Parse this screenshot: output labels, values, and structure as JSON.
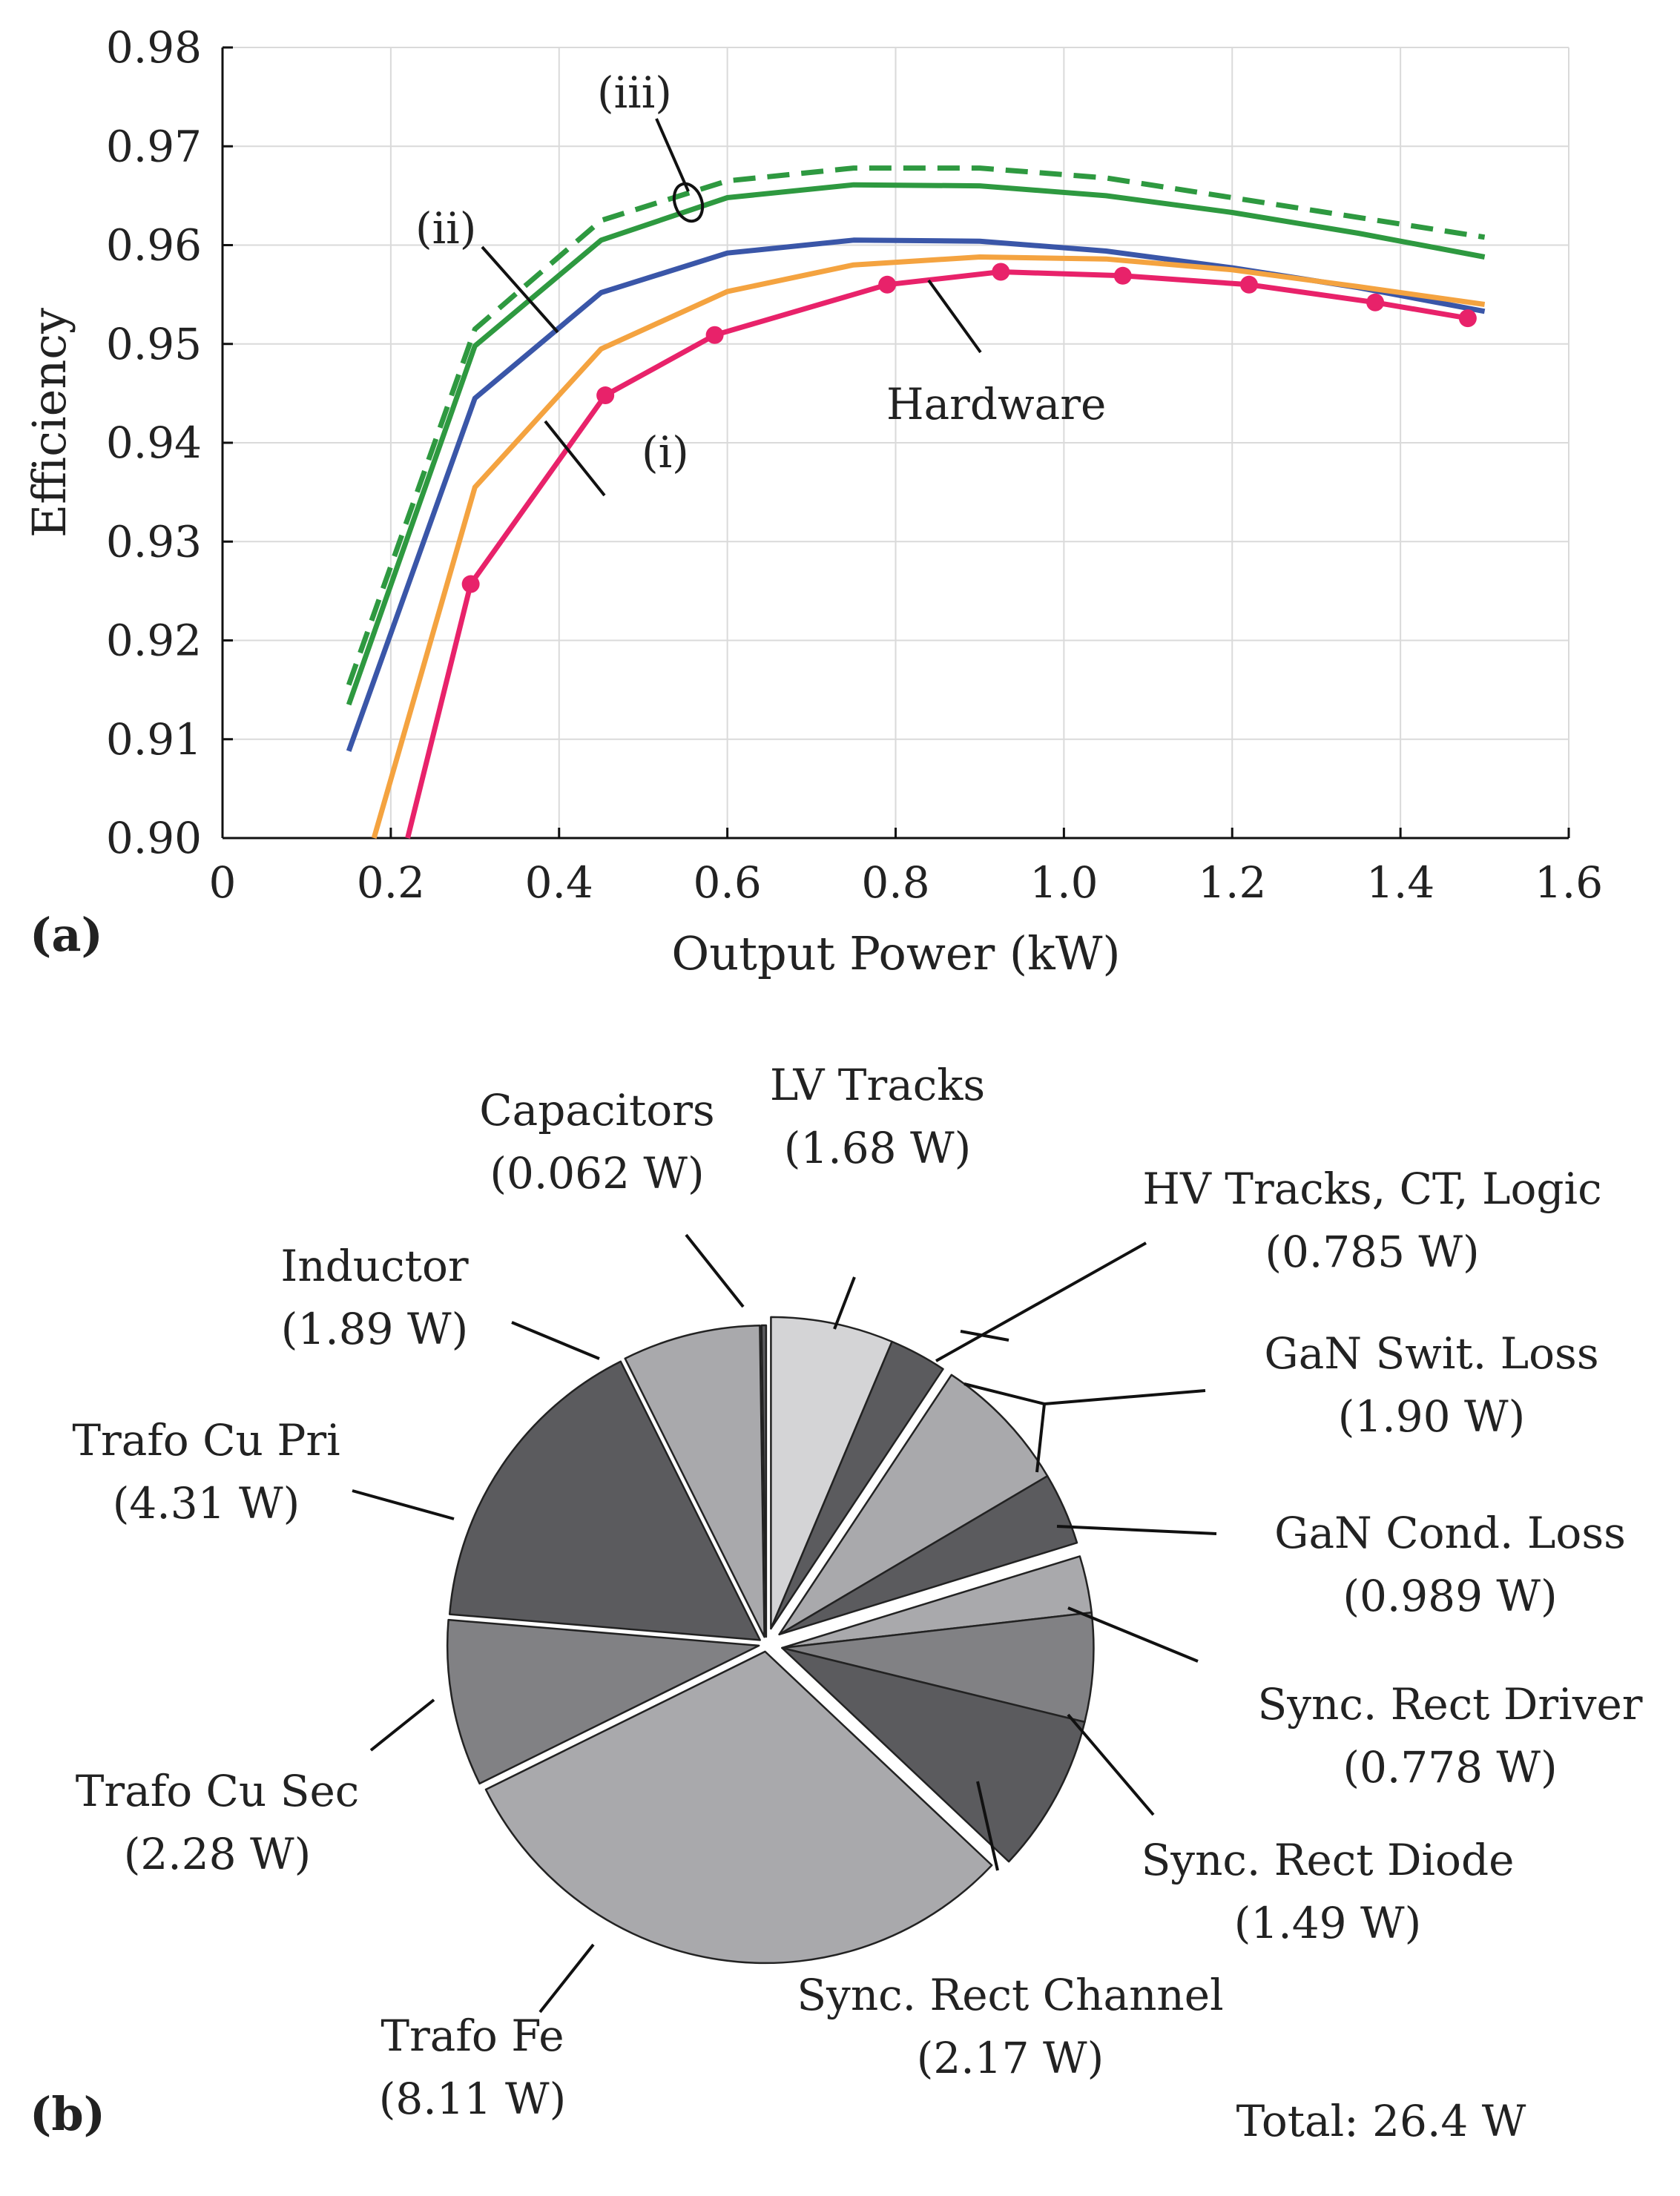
{
  "chart_data": [
    {
      "type": "line",
      "panel_label": "(a)",
      "xlabel": "Output Power (kW)",
      "ylabel": "Efficiency",
      "xlim": [
        0,
        1.6
      ],
      "ylim": [
        0.9,
        0.98
      ],
      "grid": true,
      "x_ticks": [
        "0",
        "0.2",
        "0.4",
        "0.6",
        "0.8",
        "1.0",
        "1.2",
        "1.4",
        "1.6"
      ],
      "y_ticks": [
        "0.90",
        "0.91",
        "0.92",
        "0.93",
        "0.94",
        "0.95",
        "0.96",
        "0.97",
        "0.98"
      ],
      "colors": {
        "iii_dashed": "#2e9940",
        "iii_solid": "#2e9940",
        "ii": "#3a56a8",
        "i": "#f4a340",
        "hardware": "#e8226a"
      },
      "series": [
        {
          "name": "(iii) dashed",
          "style": "dashed",
          "x": [
            0.15,
            0.3,
            0.45,
            0.6,
            0.75,
            0.9,
            1.05,
            1.2,
            1.35,
            1.5
          ],
          "y": [
            0.9155,
            0.9515,
            0.9625,
            0.9665,
            0.9678,
            0.9678,
            0.9668,
            0.9648,
            0.9628,
            0.9608
          ]
        },
        {
          "name": "(iii) solid",
          "style": "solid",
          "x": [
            0.15,
            0.3,
            0.45,
            0.6,
            0.75,
            0.9,
            1.05,
            1.2,
            1.35,
            1.5
          ],
          "y": [
            0.9135,
            0.9498,
            0.9605,
            0.9648,
            0.9661,
            0.966,
            0.965,
            0.9633,
            0.9612,
            0.9588
          ]
        },
        {
          "name": "(ii)",
          "style": "solid",
          "x": [
            0.15,
            0.3,
            0.45,
            0.6,
            0.75,
            0.9,
            1.05,
            1.2,
            1.35,
            1.5
          ],
          "y": [
            0.9088,
            0.9445,
            0.9552,
            0.9592,
            0.9605,
            0.9604,
            0.9594,
            0.9577,
            0.9557,
            0.9533
          ]
        },
        {
          "name": "(i)",
          "style": "solid",
          "x": [
            0.18,
            0.3,
            0.45,
            0.6,
            0.75,
            0.9,
            1.05,
            1.2,
            1.35,
            1.5
          ],
          "y": [
            0.9,
            0.9355,
            0.9495,
            0.9553,
            0.958,
            0.9588,
            0.9586,
            0.9575,
            0.9558,
            0.954
          ]
        },
        {
          "name": "Hardware",
          "style": "markers",
          "x": [
            0.22,
            0.295,
            0.455,
            0.585,
            0.79,
            0.925,
            1.07,
            1.22,
            1.37,
            1.48
          ],
          "y": [
            0.9,
            0.9257,
            0.9448,
            0.9509,
            0.956,
            0.9573,
            0.9569,
            0.956,
            0.9542,
            0.9526
          ]
        }
      ],
      "annotations": [
        "(i)",
        "(ii)",
        "(iii)",
        "Hardware"
      ]
    },
    {
      "type": "pie",
      "panel_label": "(b)",
      "total_label": "Total: 26.4 W",
      "slices": [
        {
          "label": "LV Tracks",
          "value_label": "(1.68 W)",
          "value": 1.68,
          "color": "#d4d4d6"
        },
        {
          "label": "HV Tracks, CT, Logic",
          "value_label": "(0.785 W)",
          "value": 0.785,
          "color": "#5b5b5e"
        },
        {
          "label": "GaN Swit. Loss",
          "value_label": "(1.90 W)",
          "value": 1.9,
          "color": "#a9a9ac"
        },
        {
          "label": "GaN Cond. Loss",
          "value_label": "(0.989 W)",
          "value": 0.989,
          "color": "#5b5b5e"
        },
        {
          "label": "Sync. Rect Driver",
          "value_label": "(0.778 W)",
          "value": 0.778,
          "color": "#a9a9ac"
        },
        {
          "label": "Sync. Rect Diode",
          "value_label": "(1.49 W)",
          "value": 1.49,
          "color": "#818184"
        },
        {
          "label": "Sync. Rect Channel",
          "value_label": "(2.17 W)",
          "value": 2.17,
          "color": "#5b5b5e"
        },
        {
          "label": "Trafo Fe",
          "value_label": "(8.11 W)",
          "value": 8.11,
          "color": "#a9a9ac"
        },
        {
          "label": "Trafo Cu Sec",
          "value_label": "(2.28 W)",
          "value": 2.28,
          "color": "#818184"
        },
        {
          "label": "Trafo Cu Pri",
          "value_label": "(4.31 W)",
          "value": 4.31,
          "color": "#5b5b5e"
        },
        {
          "label": "Inductor",
          "value_label": "(1.89 W)",
          "value": 1.89,
          "color": "#a9a9ac"
        },
        {
          "label": "Capacitors",
          "value_label": "(0.062 W)",
          "value": 0.062,
          "color": "#5b5b5e"
        }
      ]
    }
  ]
}
